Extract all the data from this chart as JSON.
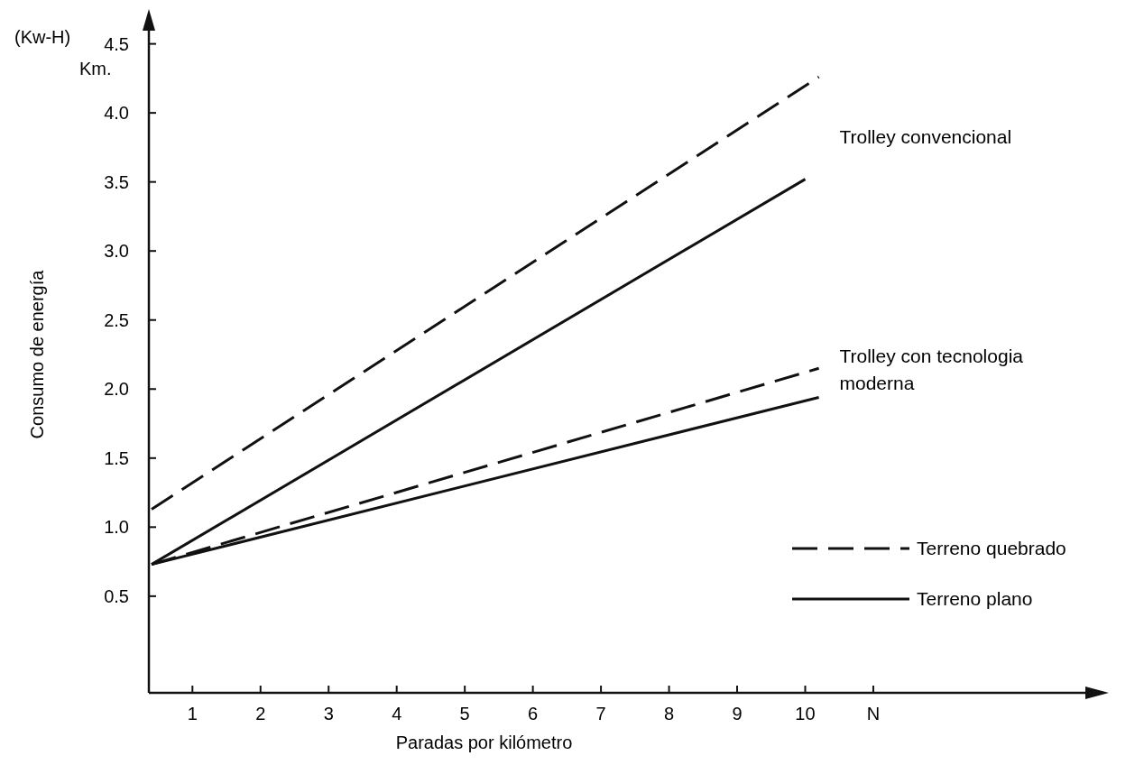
{
  "chart_data": {
    "type": "line",
    "xlabel": "Paradas por kilómetro",
    "ylabel": "Consumo de energía",
    "annotations": [
      "(Kw-H)",
      "Km.",
      {
        "text": "Trolley convencional",
        "x": 10,
        "y": 3.52
      },
      {
        "text": "Trolley con tecnologia moderna",
        "x": 10,
        "y": 1.94
      }
    ],
    "xlim": [
      0.36,
      14.3
    ],
    "ylim": [
      -0.2,
      4.7
    ],
    "xticks": [
      1,
      2,
      3,
      4,
      5,
      6,
      7,
      8,
      9,
      10,
      {
        "value": 11,
        "label": "N"
      }
    ],
    "yticks": [
      0.5,
      {
        "value": 1,
        "label": "1.0"
      },
      1.5,
      {
        "value": 2,
        "label": "2.0"
      },
      2.5,
      {
        "value": 3,
        "label": "3.0"
      },
      3.5,
      {
        "value": 4,
        "label": "4.0"
      },
      4.5
    ],
    "grid": false,
    "legend": "bottom right",
    "marker": "none",
    "series": [
      {
        "name": "Terreno quebrado",
        "color": "#111111",
        "line_style": "dashed",
        "x": [
          0.4,
          10.2
        ],
        "values": [
          1.13,
          4.26
        ]
      },
      {
        "name": "Terreno plano",
        "color": "#111111",
        "line_style": "solid",
        "x": [
          0.4,
          10
        ],
        "values": [
          0.73,
          3.52
        ]
      },
      {
        "color": "#111111",
        "line_style": "dashed",
        "x": [
          0.4,
          10.2
        ],
        "values": [
          0.73,
          2.15
        ]
      },
      {
        "color": "#111111",
        "line_style": "solid",
        "x": [
          0.4,
          10.2
        ],
        "values": [
          0.73,
          1.94
        ]
      }
    ]
  }
}
